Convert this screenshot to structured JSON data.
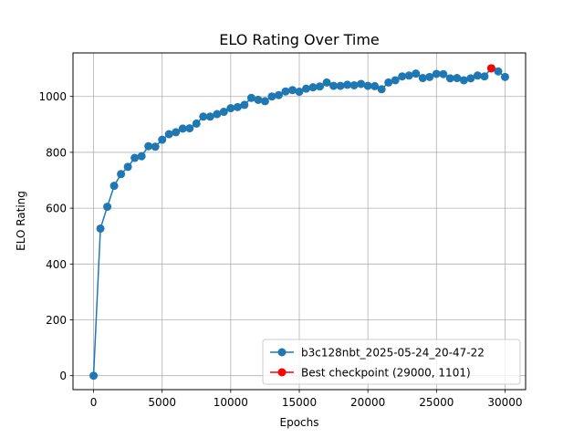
{
  "chart_data": {
    "type": "line",
    "title": "ELO Rating Over Time",
    "xlabel": "Epochs",
    "ylabel": "ELO Rating",
    "xlim": [
      -1500,
      31500
    ],
    "ylim": [
      -50,
      1156
    ],
    "xticks": [
      0,
      5000,
      10000,
      15000,
      20000,
      25000,
      30000
    ],
    "yticks": [
      0,
      200,
      400,
      600,
      800,
      1000
    ],
    "grid": true,
    "legend_position": "lower-right",
    "series": [
      {
        "name": "b3c128nbt_2025-05-24_20-47-22",
        "color": "#1f77b4",
        "marker": "circle",
        "x": [
          0,
          500,
          1000,
          1500,
          2000,
          2500,
          3000,
          3500,
          4000,
          4500,
          5000,
          5500,
          6000,
          6500,
          7000,
          7500,
          8000,
          8500,
          9000,
          9500,
          10000,
          10500,
          11000,
          11500,
          12000,
          12500,
          13000,
          13500,
          14000,
          14500,
          15000,
          15500,
          16000,
          16500,
          17000,
          17500,
          18000,
          18500,
          19000,
          19500,
          20000,
          20500,
          21000,
          21500,
          22000,
          22500,
          23000,
          23500,
          24000,
          24500,
          25000,
          25500,
          26000,
          26500,
          27000,
          27500,
          28000,
          28500,
          29000,
          29500,
          30000
        ],
        "y": [
          0,
          527,
          605,
          680,
          722,
          748,
          780,
          786,
          822,
          820,
          845,
          865,
          872,
          885,
          886,
          903,
          928,
          928,
          937,
          945,
          958,
          962,
          970,
          995,
          988,
          983,
          1000,
          1005,
          1018,
          1023,
          1017,
          1028,
          1033,
          1036,
          1050,
          1038,
          1038,
          1042,
          1040,
          1045,
          1038,
          1037,
          1026,
          1050,
          1058,
          1072,
          1075,
          1082,
          1066,
          1070,
          1081,
          1080,
          1065,
          1066,
          1058,
          1065,
          1075,
          1072,
          1101,
          1090,
          1070
        ]
      },
      {
        "name": "Best checkpoint (29000, 1101)",
        "color": "#ff0000",
        "marker": "circle",
        "x": [
          29000
        ],
        "y": [
          1101
        ]
      }
    ]
  }
}
